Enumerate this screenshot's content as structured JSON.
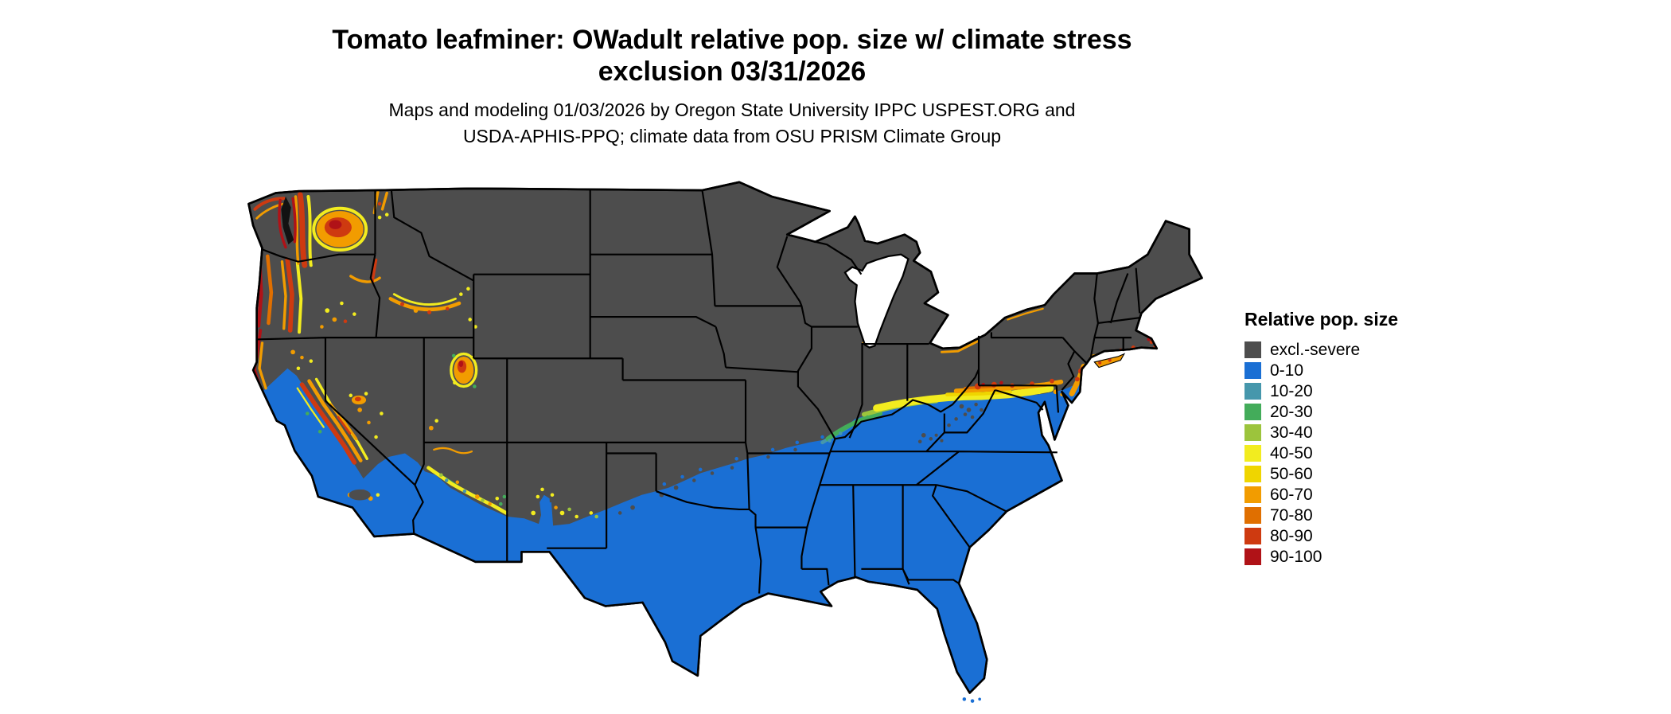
{
  "title": {
    "line1": "Tomato leafminer: OWadult relative pop. size w/ climate stress",
    "line2": "exclusion 03/31/2026"
  },
  "subtitle": {
    "line1": "Maps and modeling 01/03/2026 by Oregon State University IPPC USPEST.ORG and",
    "line2": "USDA-APHIS-PPQ; climate data from OSU PRISM Climate Group"
  },
  "legend": {
    "title": "Relative pop. size",
    "items": [
      {
        "label": "excl.-severe",
        "color_key": "excl"
      },
      {
        "label": "0-10",
        "color_key": "b0_10"
      },
      {
        "label": "10-20",
        "color_key": "b10_20"
      },
      {
        "label": "20-30",
        "color_key": "b20_30"
      },
      {
        "label": "30-40",
        "color_key": "b30_40"
      },
      {
        "label": "40-50",
        "color_key": "b40_50"
      },
      {
        "label": "50-60",
        "color_key": "b50_60"
      },
      {
        "label": "60-70",
        "color_key": "b60_70"
      },
      {
        "label": "70-80",
        "color_key": "b70_80"
      },
      {
        "label": "80-90",
        "color_key": "b80_90"
      },
      {
        "label": "90-100",
        "color_key": "b90_100"
      }
    ]
  },
  "colors": {
    "excl": "#4D4D4D",
    "b0_10": "#1A6FD4",
    "b10_20": "#4697AC",
    "b20_30": "#43AC5A",
    "b30_40": "#9CC43C",
    "b40_50": "#F2EC1F",
    "b50_60": "#EFD500",
    "b60_70": "#F29C00",
    "b70_80": "#E06F00",
    "b80_90": "#CE3A10",
    "b90_100": "#B01217",
    "border": "#000000",
    "water": "#FFFFFF",
    "puget": "#121212"
  }
}
